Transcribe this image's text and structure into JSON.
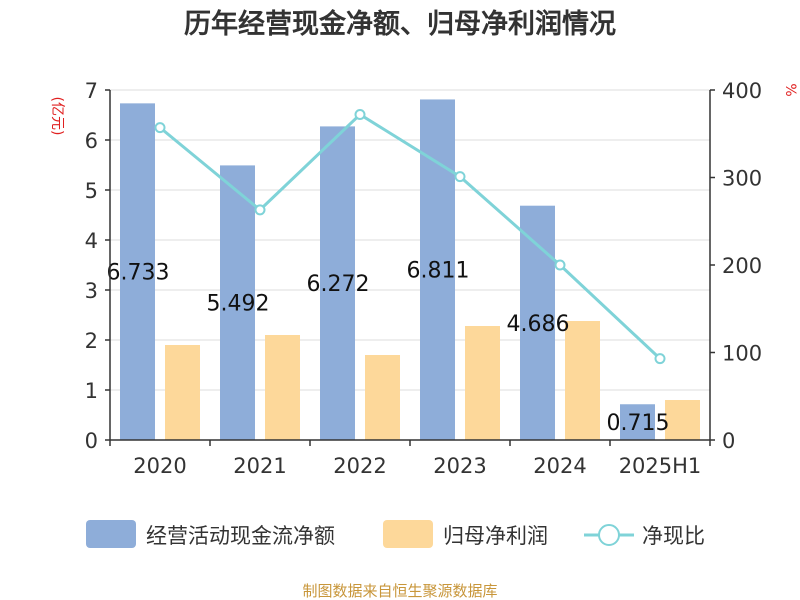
{
  "title": "历年经营现金净额、归母净利润情况",
  "source": "制图数据来自恒生聚源数据库",
  "colors": {
    "cashflow": "#8eadd9",
    "netprofit": "#fdd89a",
    "ratio": "#7fd3d8",
    "axis": "#333333",
    "grid": "#dddddd",
    "unit": "#e02020",
    "source": "#c8963a"
  },
  "chart_data": {
    "type": "bar",
    "categories": [
      "2020",
      "2021",
      "2022",
      "2023",
      "2024",
      "2025H1"
    ],
    "left_axis": {
      "unit": "(亿元)",
      "min": 0,
      "max": 7,
      "ticks": [
        0,
        1,
        2,
        3,
        4,
        5,
        6,
        7
      ]
    },
    "right_axis": {
      "unit": "%",
      "min": 0,
      "max": 400,
      "ticks": [
        0,
        100,
        200,
        300,
        400
      ]
    },
    "series": [
      {
        "name": "经营活动现金流净额",
        "type": "bar",
        "axis": "left",
        "values": [
          6.733,
          5.492,
          6.272,
          6.811,
          4.686,
          0.715
        ],
        "labels": [
          "6.733",
          "5.492",
          "6.272",
          "6.811",
          "4.686",
          "0.715"
        ]
      },
      {
        "name": "归母净利润",
        "type": "bar",
        "axis": "left",
        "values": [
          1.9,
          2.1,
          1.7,
          2.28,
          2.38,
          0.8
        ]
      },
      {
        "name": "净现比",
        "type": "line",
        "axis": "right",
        "values": [
          357,
          263,
          372,
          301,
          200,
          93
        ]
      }
    ],
    "grid": true,
    "legend_position": "bottom"
  }
}
